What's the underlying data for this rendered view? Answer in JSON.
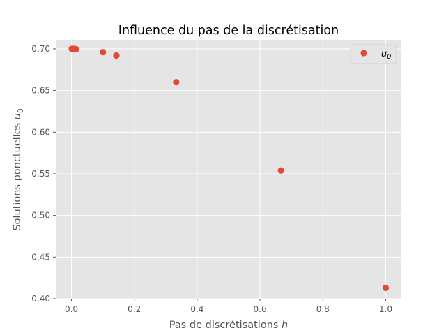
{
  "chart_data": {
    "type": "scatter",
    "title": "Influence du pas de la discrétisation",
    "xlabel": "Pas de discrétisations",
    "xlabel_var": "h",
    "ylabel": "Solutions ponctuelles",
    "ylabel_var": "u",
    "ylabel_sub": "0",
    "xlim": [
      -0.05,
      1.05
    ],
    "ylim": [
      0.4,
      0.71
    ],
    "xticks": [
      0.0,
      0.2,
      0.4,
      0.6,
      0.8,
      1.0
    ],
    "xtick_labels": [
      "0.0",
      "0.2",
      "0.4",
      "0.6",
      "0.8",
      "1.0"
    ],
    "yticks": [
      0.4,
      0.45,
      0.5,
      0.55,
      0.6,
      0.65,
      0.7
    ],
    "ytick_labels": [
      "0.40",
      "0.45",
      "0.50",
      "0.55",
      "0.60",
      "0.65",
      "0.70"
    ],
    "grid": true,
    "legend_position": "top-right",
    "series": [
      {
        "name": "u",
        "name_sub": "0",
        "color": "#E24A33",
        "points": [
          {
            "x": 0.001,
            "y": 0.7
          },
          {
            "x": 0.005,
            "y": 0.7
          },
          {
            "x": 0.01,
            "y": 0.7
          },
          {
            "x": 0.0143,
            "y": 0.6995
          },
          {
            "x": 0.1,
            "y": 0.696
          },
          {
            "x": 0.1429,
            "y": 0.692
          },
          {
            "x": 0.3333,
            "y": 0.66
          },
          {
            "x": 0.6667,
            "y": 0.554
          },
          {
            "x": 1.0,
            "y": 0.413
          }
        ]
      }
    ],
    "colors": {
      "background": "#E5E5E5",
      "grid": "#FFFFFF",
      "text": "#555555"
    }
  }
}
